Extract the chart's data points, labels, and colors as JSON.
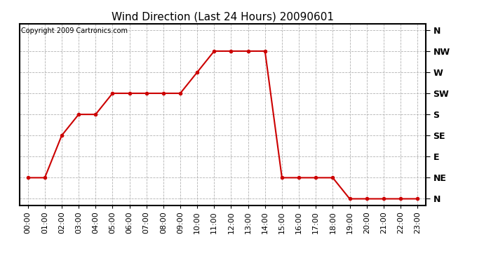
{
  "title": "Wind Direction (Last 24 Hours) 20090601",
  "copyright": "Copyright 2009 Cartronics.com",
  "hours": [
    0,
    1,
    2,
    3,
    4,
    5,
    6,
    7,
    8,
    9,
    10,
    11,
    12,
    13,
    14,
    15,
    16,
    17,
    18,
    19,
    20,
    21,
    22,
    23
  ],
  "hour_labels": [
    "00:00",
    "01:00",
    "02:00",
    "03:00",
    "04:00",
    "05:00",
    "06:00",
    "07:00",
    "08:00",
    "09:00",
    "10:00",
    "11:00",
    "12:00",
    "13:00",
    "14:00",
    "15:00",
    "16:00",
    "17:00",
    "18:00",
    "19:00",
    "20:00",
    "21:00",
    "22:00",
    "23:00"
  ],
  "wind_values": [
    1,
    1,
    3,
    4,
    4,
    5,
    5,
    5,
    5,
    5,
    6,
    7,
    7,
    7,
    7,
    1,
    1,
    1,
    1,
    0,
    0,
    0,
    0,
    0
  ],
  "ytick_labels": [
    "N",
    "NE",
    "E",
    "SE",
    "S",
    "SW",
    "W",
    "NW",
    "N"
  ],
  "ytick_values": [
    0,
    1,
    2,
    3,
    4,
    5,
    6,
    7,
    8
  ],
  "line_color": "#cc0000",
  "marker": "o",
  "marker_size": 3,
  "background_color": "#ffffff",
  "grid_color": "#aaaaaa",
  "title_fontsize": 11,
  "copyright_fontsize": 7,
  "tick_fontsize": 8,
  "ytick_fontsize": 9,
  "ylim_min": -0.3,
  "ylim_max": 8.3
}
